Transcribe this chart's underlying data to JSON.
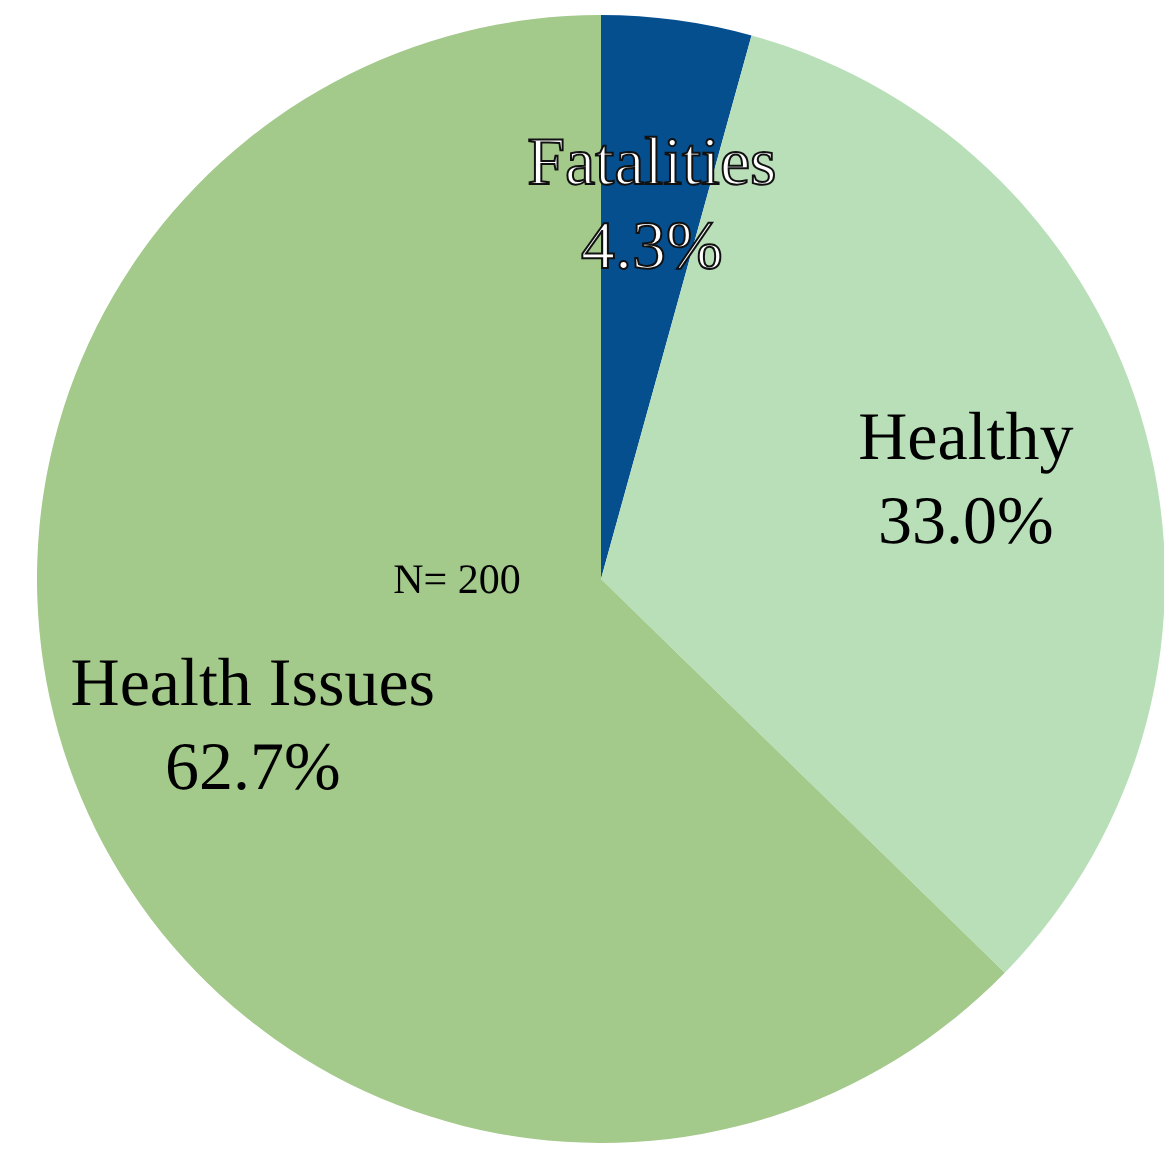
{
  "chart_data": {
    "type": "pie",
    "categories": [
      "Fatalities",
      "Healthy",
      "Health Issues"
    ],
    "values": [
      4.3,
      33.0,
      62.7
    ],
    "value_labels": [
      "4.3%",
      "33.0%",
      "62.7%"
    ],
    "colors": [
      "#054f8f",
      "#b8dfb8",
      "#a3c98b"
    ],
    "annotations": [
      "N= 200"
    ],
    "legend": false
  }
}
